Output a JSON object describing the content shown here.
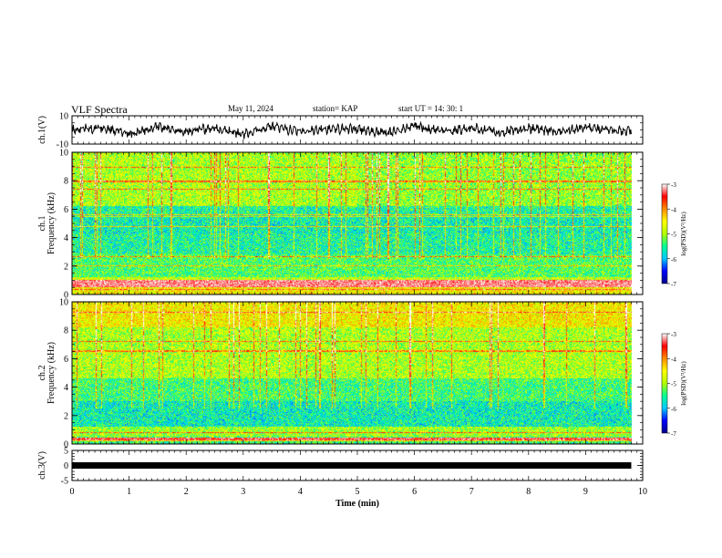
{
  "header": {
    "title": "VLF Spectra",
    "date": "May 11, 2024",
    "station": "station= KAP",
    "start_ut": "start  UT  =   14: 30: 1"
  },
  "chart_data": [
    {
      "type": "line",
      "panel": "ch1-waveform",
      "ylabel": "ch.1(V)",
      "ylim": [
        -10,
        10
      ],
      "y_ticks": [
        "10",
        "-10"
      ],
      "xlim": [
        0,
        10
      ],
      "x": [
        0,
        0.5,
        1,
        1.5,
        2,
        2.5,
        3,
        3.5,
        4,
        4.5,
        5,
        5.5,
        6,
        6.5,
        7,
        7.5,
        8,
        8.5,
        9,
        9.5,
        9.8
      ],
      "values": [
        0,
        1.5,
        -2.5,
        2,
        -1,
        1,
        -3,
        2,
        -1.5,
        1,
        0.5,
        -2,
        2.5,
        -1,
        1.5,
        -2,
        1,
        -1.5,
        2,
        -1,
        0
      ]
    },
    {
      "type": "heatmap",
      "panel": "ch1-spectrogram",
      "ylabel": "ch.1\nFrequency (kHz)",
      "ylim": [
        0,
        10
      ],
      "y_ticks": [
        "0",
        "2",
        "4",
        "6",
        "8",
        "10"
      ],
      "xlim": [
        0,
        10
      ],
      "colorbar": {
        "label": "log(PSD)(V²/Hz)",
        "range": [
          -7,
          -3
        ],
        "ticks": [
          "-3",
          "-4",
          "-5",
          "-6",
          "-7"
        ]
      }
    },
    {
      "type": "heatmap",
      "panel": "ch2-spectrogram",
      "ylabel": "ch.2\nFrequency (kHz)",
      "ylim": [
        0,
        10
      ],
      "y_ticks": [
        "0",
        "2",
        "4",
        "6",
        "8",
        "10"
      ],
      "xlim": [
        0,
        10
      ],
      "colorbar": {
        "label": "log(PSD)(V²/Hz)",
        "range": [
          -7,
          -3
        ],
        "ticks": [
          "-3",
          "-4",
          "-5",
          "-6",
          "-7"
        ]
      }
    },
    {
      "type": "line",
      "panel": "ch3-signal",
      "ylabel": "ch.3(V)",
      "ylim": [
        -5,
        5
      ],
      "y_ticks": [
        "5",
        "0",
        "-5"
      ],
      "xlim": [
        0,
        10
      ],
      "x": [
        0,
        9.8
      ],
      "values": [
        0,
        0
      ]
    }
  ],
  "x_axis": {
    "label": "Time  (min)",
    "ticks": [
      "0",
      "1",
      "2",
      "3",
      "4",
      "5",
      "6",
      "7",
      "8",
      "9",
      "10"
    ]
  },
  "colors": {
    "colormap": [
      "#00008c",
      "#0000ff",
      "#00c8ff",
      "#00ff96",
      "#b4ff00",
      "#ffff00",
      "#ff8c00",
      "#ff0000",
      "#ffffff"
    ]
  }
}
